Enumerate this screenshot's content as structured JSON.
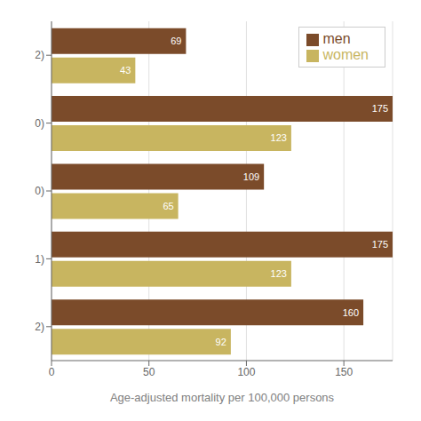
{
  "chart_data": {
    "type": "bar",
    "orientation": "horizontal",
    "categories": [
      "2)",
      "0)",
      "0)",
      "1)",
      "2)"
    ],
    "series": [
      {
        "name": "men",
        "color": "#7B4B2A",
        "values": [
          69,
          175,
          109,
          175,
          160
        ]
      },
      {
        "name": "women",
        "color": "#C8B560",
        "values": [
          43,
          123,
          65,
          123,
          92
        ]
      }
    ],
    "xlabel": "Age-adjusted mortality per 100,000 persons",
    "xlim": [
      0,
      175
    ],
    "xticks": [
      0,
      50,
      100,
      150
    ],
    "grid": true,
    "legend": "upper right",
    "data_labels": true
  }
}
